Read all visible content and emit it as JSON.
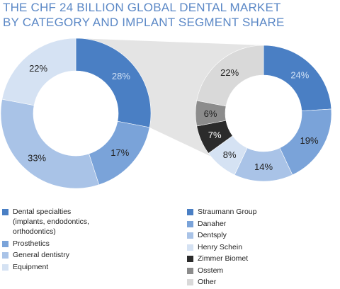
{
  "title_lines": [
    "The CHF 24 billion global dental market",
    "by category and implant segment share"
  ],
  "chart_data": [
    {
      "type": "pie",
      "name": "category",
      "categories": [
        "Dental specialties\n(implants, endodontics,\northodontics)",
        "Prosthetics",
        "General dentistry",
        "Equipment"
      ],
      "values": [
        28,
        17,
        33,
        22
      ],
      "data_labels": [
        "28%",
        "17%",
        "33%",
        "22%"
      ],
      "colors": [
        "#4a7fc4",
        "#7aa3d9",
        "#a9c3e7",
        "#d5e2f3"
      ],
      "label_colors": [
        "#cfe0f5",
        "#222222",
        "#222222",
        "#222222"
      ]
    },
    {
      "type": "pie",
      "name": "implant_segment",
      "categories": [
        "Straumann Group",
        "Danaher",
        "Dentsply",
        "Henry Schein",
        "Zimmer Biomet",
        "Osstem",
        "Other"
      ],
      "values": [
        24,
        19,
        14,
        8,
        7,
        6,
        22
      ],
      "data_labels": [
        "24%",
        "19%",
        "14%",
        "8%",
        "7%",
        "6%",
        "22%"
      ],
      "colors": [
        "#4a7fc4",
        "#7aa3d9",
        "#a9c3e7",
        "#d5e2f3",
        "#2b2b2b",
        "#8c8c8c",
        "#d9d9d9"
      ],
      "label_colors": [
        "#cfe0f5",
        "#222222",
        "#222222",
        "#222222",
        "#ffffff",
        "#222222",
        "#222222"
      ]
    }
  ],
  "connector_color": "#e4e4e4"
}
